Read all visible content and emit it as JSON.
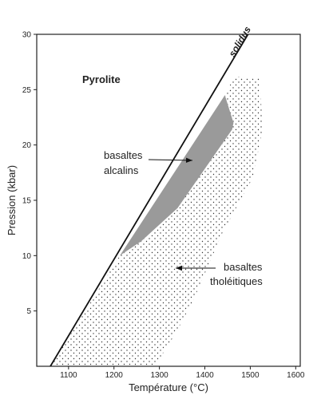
{
  "chart_data": {
    "type": "line",
    "title": "",
    "xlabel": "Température (°C)",
    "ylabel": "Pression (kbar)",
    "xlim": [
      1030,
      1610
    ],
    "ylim": [
      0,
      30
    ],
    "x_ticks": [
      1100,
      1200,
      1300,
      1400,
      1500,
      1600
    ],
    "y_ticks": [
      5,
      10,
      15,
      20,
      25,
      30
    ],
    "grid": false,
    "series": [
      {
        "name": "solidus",
        "x": [
          1060,
          1495
        ],
        "y": [
          0,
          30
        ]
      }
    ],
    "regions": [
      {
        "label": "basaltes alcalins",
        "fill": "#9a9a9a",
        "x": [
          1213,
          1444,
          1463,
          1460,
          1340,
          1260
        ],
        "y": [
          10,
          24.5,
          22,
          21.4,
          14.3,
          11.3
        ]
      },
      {
        "label": "basaltes tholéitiques",
        "fill": "dotted",
        "x": [
          1060,
          1213,
          1260,
          1340,
          1460,
          1463,
          1444,
          1465,
          1520,
          1528,
          1505,
          1438,
          1375,
          1336,
          1290
        ],
        "y": [
          0,
          10,
          11.3,
          14.3,
          21.4,
          22,
          24.5,
          26.2,
          26,
          21.5,
          17,
          12,
          6,
          3,
          0
        ]
      }
    ],
    "annotations": {
      "rock": "Pyrolite",
      "solidus": "solidus",
      "alcalins_line1": "basaltes",
      "alcalins_line2": "alcalins",
      "tholeitiques_line1": "basaltes",
      "tholeitiques_line2": "tholéitiques"
    }
  }
}
